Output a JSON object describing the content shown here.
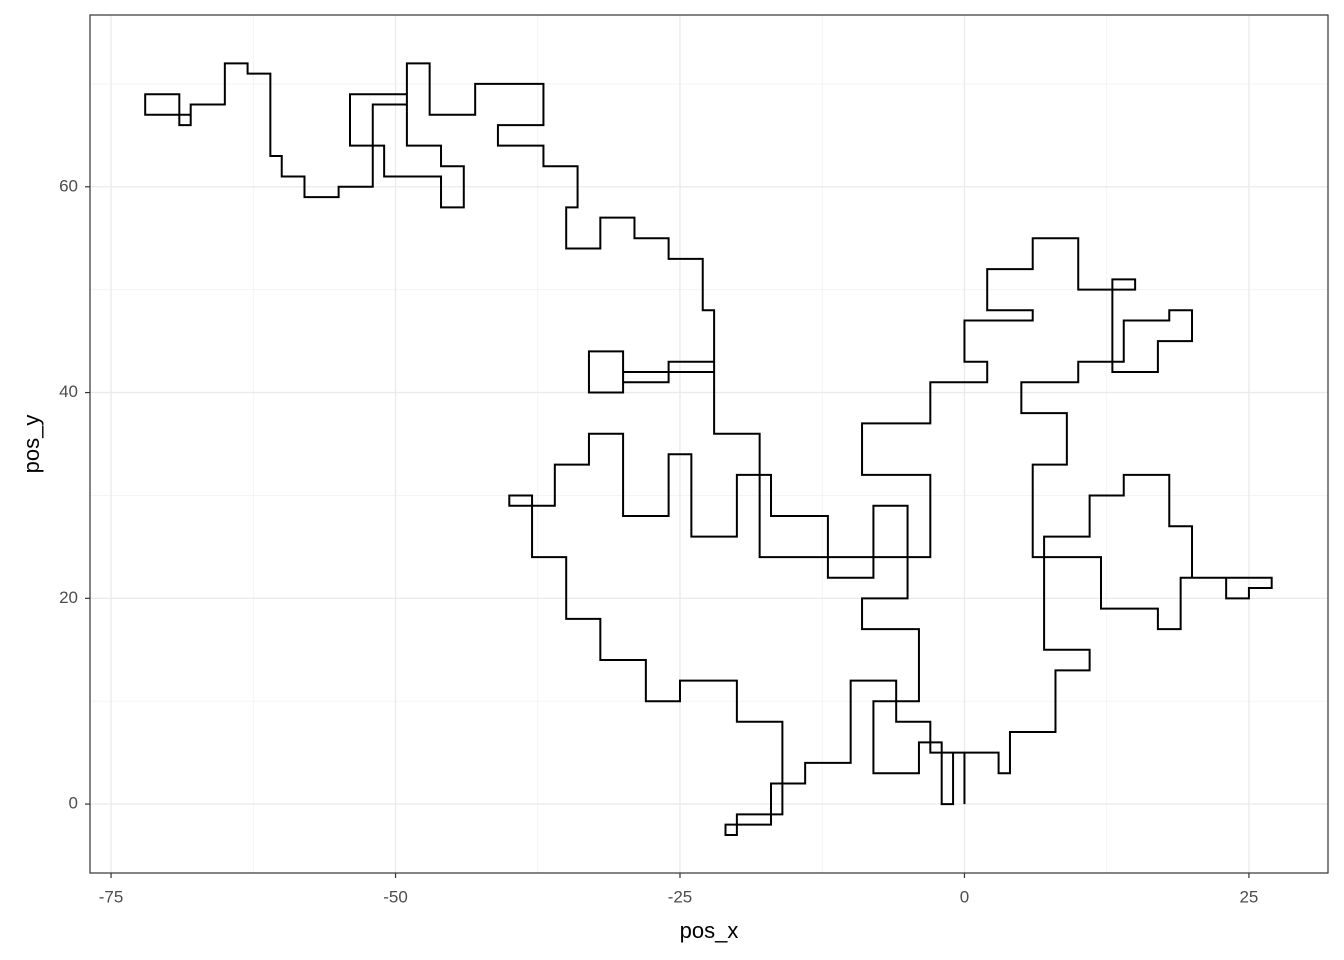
{
  "chart_data": {
    "type": "line",
    "x_label": "pos_x",
    "y_label": "pos_y",
    "xlim": [
      -76.85,
      31.95
    ],
    "ylim": [
      -6.7,
      76.7
    ],
    "xticks": [
      -75,
      -50,
      -25,
      0,
      25
    ],
    "yticks": [
      0,
      20,
      40,
      60
    ],
    "x_minor_grid": [
      -62.5,
      -37.5,
      -12.5,
      12.5
    ],
    "y_minor_grid": [
      10,
      30,
      50,
      70
    ],
    "grid": true,
    "color": "#000000",
    "x": [
      0,
      0,
      -3,
      -3,
      -6,
      -6,
      -10,
      -10,
      -14,
      -14,
      -17,
      -17,
      -21,
      -21,
      -20,
      -20,
      -16,
      -16,
      -20,
      -20,
      -25,
      -25,
      -28,
      -28,
      -32,
      -32,
      -35,
      -35,
      -38,
      -38,
      -40,
      -40,
      -36,
      -36,
      -33,
      -33,
      -30,
      -30,
      -26,
      -26,
      -24,
      -24,
      -20,
      -20,
      -17,
      -17,
      -12,
      -12,
      -8,
      -8,
      -5,
      -5,
      -9,
      -9,
      -4,
      -4,
      -8,
      -8,
      -4,
      -4,
      -2,
      -2,
      -1,
      -1,
      3,
      3,
      4,
      4,
      8,
      8,
      11,
      11,
      7,
      7,
      11,
      11,
      14,
      14,
      18,
      18,
      20,
      20,
      23,
      23,
      25,
      25,
      27,
      27,
      19,
      19,
      17,
      17,
      12,
      12,
      6,
      6,
      9,
      9,
      5,
      5,
      10,
      10,
      14,
      14,
      18,
      18,
      20,
      20,
      17,
      17,
      13,
      13,
      15,
      15,
      10,
      10,
      6,
      6,
      2,
      2,
      6,
      6,
      0,
      0,
      2,
      2,
      -3,
      -3,
      -9,
      -9,
      -3,
      -3,
      -18,
      -18,
      -22,
      -22,
      -26,
      -26,
      -30,
      -30,
      -33,
      -33,
      -30,
      -30,
      -22,
      -22,
      -23,
      -23,
      -26,
      -26,
      -29,
      -29,
      -32,
      -32,
      -35,
      -35,
      -34,
      -34,
      -37,
      -37,
      -41,
      -41,
      -37,
      -37,
      -43,
      -43,
      -47,
      -47,
      -49,
      -49,
      -46,
      -46,
      -44,
      -44,
      -46,
      -46,
      -51,
      -51,
      -54,
      -54,
      -49,
      -49,
      -52,
      -52,
      -55,
      -55,
      -58,
      -58,
      -60,
      -60,
      -61,
      -61,
      -63,
      -63,
      -65,
      -65,
      -68,
      -68,
      -69,
      -69,
      -72,
      -72,
      -68
    ],
    "y": [
      0,
      5,
      5,
      8,
      8,
      12,
      12,
      4,
      4,
      2,
      2,
      -2,
      -2,
      -3,
      -3,
      -1,
      -1,
      8,
      8,
      12,
      12,
      10,
      10,
      14,
      14,
      18,
      18,
      24,
      24,
      30,
      30,
      29,
      29,
      33,
      33,
      36,
      36,
      28,
      28,
      34,
      34,
      26,
      26,
      32,
      32,
      28,
      28,
      22,
      22,
      29,
      29,
      20,
      20,
      17,
      17,
      10,
      10,
      3,
      3,
      6,
      6,
      0,
      0,
      5,
      5,
      3,
      3,
      7,
      7,
      13,
      13,
      15,
      15,
      26,
      26,
      30,
      30,
      32,
      32,
      27,
      27,
      22,
      22,
      20,
      20,
      21,
      21,
      22,
      22,
      17,
      17,
      19,
      19,
      24,
      24,
      33,
      33,
      38,
      38,
      41,
      41,
      43,
      43,
      47,
      47,
      48,
      48,
      45,
      45,
      42,
      42,
      51,
      51,
      50,
      50,
      55,
      55,
      52,
      52,
      48,
      48,
      47,
      47,
      43,
      43,
      41,
      41,
      37,
      37,
      32,
      32,
      24,
      24,
      36,
      36,
      43,
      43,
      41,
      41,
      44,
      44,
      40,
      40,
      42,
      42,
      48,
      48,
      53,
      53,
      55,
      55,
      57,
      57,
      54,
      54,
      58,
      58,
      62,
      62,
      64,
      64,
      66,
      66,
      70,
      70,
      67,
      67,
      72,
      72,
      64,
      64,
      62,
      62,
      58,
      58,
      61,
      61,
      64,
      64,
      69,
      69,
      68,
      68,
      60,
      60,
      59,
      59,
      61,
      61,
      63,
      63,
      71,
      71,
      72,
      72,
      68,
      68,
      66,
      66,
      69,
      69,
      67,
      67
    ]
  }
}
